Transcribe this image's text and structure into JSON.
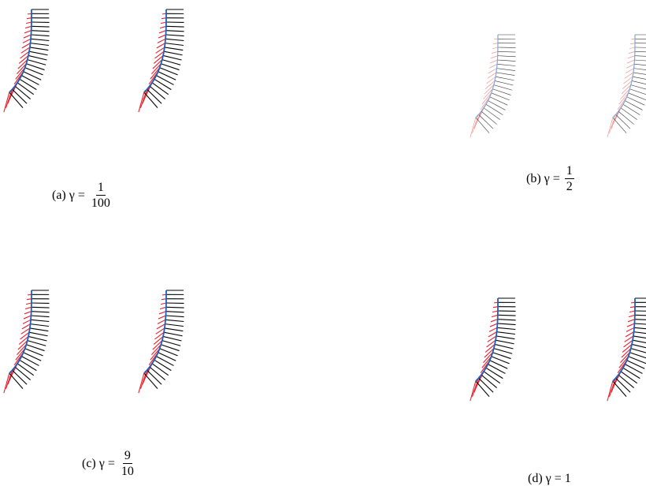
{
  "subfigures": [
    {
      "caption": "(a) γ =",
      "numerator": "1",
      "denominator": "100"
    },
    {
      "caption": "(b) γ =",
      "numerator": "1",
      "denominator": "2"
    },
    {
      "caption": "(c) γ =",
      "numerator": "9",
      "denominator": "10"
    },
    {
      "caption": "(d) γ = 1"
    }
  ]
}
